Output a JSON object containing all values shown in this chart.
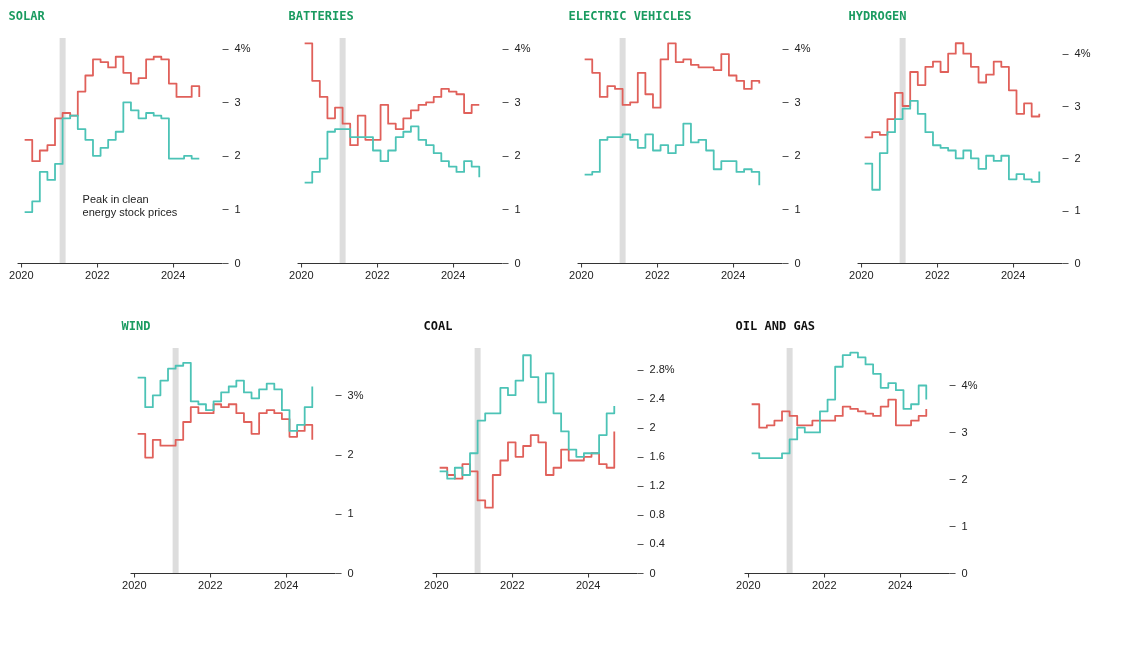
{
  "chart_data": [
    {
      "type": "step",
      "title": "SOLAR",
      "x": [
        2020.1,
        2020.3,
        2020.5,
        2020.7,
        2020.9,
        2021.1,
        2021.3,
        2021.5,
        2021.7,
        2021.9,
        2022.1,
        2022.3,
        2022.5,
        2022.7,
        2022.9,
        2023.1,
        2023.3,
        2023.5,
        2023.7,
        2023.9,
        2024.1,
        2024.3,
        2024.5,
        2024.7
      ],
      "xlim": [
        2019.9,
        2025.3
      ],
      "xticks": [
        2020,
        2022,
        2024
      ],
      "ylim": [
        0,
        4.2
      ],
      "yticks": [
        0,
        1,
        2,
        3,
        {
          "value": 4,
          "label": "4%"
        }
      ],
      "legend": false,
      "grid": false,
      "ref_lines": [
        {
          "axis": "x",
          "value": 2021.1,
          "label": "Peak in clean energy stock prices",
          "color": "#dddddd"
        }
      ],
      "series": [
        {
          "color": "#e0605a",
          "values": [
            2.3,
            1.9,
            2.1,
            2.2,
            2.7,
            2.8,
            2.75,
            3.2,
            3.5,
            3.8,
            3.75,
            3.65,
            3.85,
            3.55,
            3.35,
            3.45,
            3.8,
            3.85,
            3.8,
            3.35,
            3.1,
            3.1,
            3.3,
            3.1
          ]
        },
        {
          "color": "#4cc3b6",
          "values": [
            0.95,
            1.15,
            1.7,
            1.55,
            1.85,
            2.7,
            2.75,
            2.5,
            2.3,
            2.0,
            2.15,
            2.3,
            2.45,
            3.0,
            2.85,
            2.7,
            2.8,
            2.75,
            2.7,
            1.95,
            1.95,
            2.0,
            1.95,
            1.95
          ]
        }
      ]
    },
    {
      "type": "step",
      "title": "BATTERIES",
      "x": [
        2020.1,
        2020.3,
        2020.5,
        2020.7,
        2020.9,
        2021.1,
        2021.3,
        2021.5,
        2021.7,
        2021.9,
        2022.1,
        2022.3,
        2022.5,
        2022.7,
        2022.9,
        2023.1,
        2023.3,
        2023.5,
        2023.7,
        2023.9,
        2024.1,
        2024.3,
        2024.5,
        2024.7
      ],
      "xlim": [
        2019.9,
        2025.3
      ],
      "xticks": [
        2020,
        2022,
        2024
      ],
      "ylim": [
        0,
        4.2
      ],
      "yticks": [
        0,
        1,
        2,
        3,
        {
          "value": 4,
          "label": "4%"
        }
      ],
      "legend": false,
      "grid": false,
      "ref_lines": [
        {
          "axis": "x",
          "value": 2021.1,
          "color": "#dddddd"
        }
      ],
      "series": [
        {
          "color": "#e0605a",
          "values": [
            4.1,
            3.4,
            3.1,
            2.7,
            2.9,
            2.6,
            2.2,
            2.75,
            2.3,
            2.3,
            2.95,
            2.6,
            2.5,
            2.7,
            2.85,
            2.95,
            3.0,
            3.1,
            3.25,
            3.2,
            3.15,
            2.8,
            2.95,
            2.95
          ]
        },
        {
          "color": "#4cc3b6",
          "values": [
            1.5,
            1.7,
            1.95,
            2.45,
            2.5,
            2.5,
            2.35,
            2.35,
            2.35,
            2.1,
            1.9,
            2.1,
            2.35,
            2.45,
            2.55,
            2.3,
            2.2,
            2.05,
            1.9,
            1.8,
            1.7,
            1.9,
            1.8,
            1.6
          ]
        }
      ]
    },
    {
      "type": "step",
      "title": "ELECTRIC VEHICLES",
      "x": [
        2020.1,
        2020.3,
        2020.5,
        2020.7,
        2020.9,
        2021.1,
        2021.3,
        2021.5,
        2021.7,
        2021.9,
        2022.1,
        2022.3,
        2022.5,
        2022.7,
        2022.9,
        2023.1,
        2023.3,
        2023.5,
        2023.7,
        2023.9,
        2024.1,
        2024.3,
        2024.5,
        2024.7
      ],
      "xlim": [
        2019.9,
        2025.3
      ],
      "xticks": [
        2020,
        2022,
        2024
      ],
      "ylim": [
        0,
        4.2
      ],
      "yticks": [
        0,
        1,
        2,
        3,
        {
          "value": 4,
          "label": "4%"
        }
      ],
      "legend": false,
      "grid": false,
      "ref_lines": [
        {
          "axis": "x",
          "value": 2021.1,
          "color": "#dddddd"
        }
      ],
      "series": [
        {
          "color": "#e0605a",
          "values": [
            3.8,
            3.55,
            3.1,
            3.3,
            3.25,
            2.95,
            3.0,
            3.55,
            3.15,
            2.9,
            3.8,
            4.1,
            3.75,
            3.8,
            3.7,
            3.65,
            3.65,
            3.6,
            3.9,
            3.5,
            3.4,
            3.25,
            3.4,
            3.35
          ]
        },
        {
          "color": "#4cc3b6",
          "values": [
            1.65,
            1.7,
            2.3,
            2.35,
            2.35,
            2.4,
            2.3,
            2.15,
            2.4,
            2.1,
            2.2,
            2.05,
            2.2,
            2.6,
            2.25,
            2.3,
            2.1,
            1.75,
            1.9,
            1.9,
            1.7,
            1.75,
            1.7,
            1.45
          ]
        }
      ]
    },
    {
      "type": "step",
      "title": "HYDROGEN",
      "x": [
        2020.1,
        2020.3,
        2020.5,
        2020.7,
        2020.9,
        2021.1,
        2021.3,
        2021.5,
        2021.7,
        2021.9,
        2022.1,
        2022.3,
        2022.5,
        2022.7,
        2022.9,
        2023.1,
        2023.3,
        2023.5,
        2023.7,
        2023.9,
        2024.1,
        2024.3,
        2024.5,
        2024.7
      ],
      "xlim": [
        2019.9,
        2025.3
      ],
      "xticks": [
        2020,
        2022,
        2024
      ],
      "ylim": [
        0,
        4.3
      ],
      "yticks": [
        0,
        1,
        2,
        3,
        {
          "value": 4,
          "label": "4%"
        }
      ],
      "legend": false,
      "grid": false,
      "ref_lines": [
        {
          "axis": "x",
          "value": 2021.1,
          "color": "#dddddd"
        }
      ],
      "series": [
        {
          "color": "#e0605a",
          "values": [
            2.4,
            2.5,
            2.45,
            2.75,
            3.25,
            3.0,
            3.65,
            3.4,
            3.75,
            3.85,
            3.65,
            4.0,
            4.2,
            4.0,
            3.75,
            3.45,
            3.6,
            3.85,
            3.75,
            3.3,
            2.85,
            3.05,
            2.8,
            2.85
          ]
        },
        {
          "color": "#4cc3b6",
          "values": [
            1.9,
            1.4,
            2.1,
            2.5,
            2.75,
            2.95,
            3.1,
            2.85,
            2.5,
            2.25,
            2.2,
            2.15,
            2.0,
            2.15,
            2.0,
            1.8,
            2.05,
            1.95,
            2.05,
            1.6,
            1.7,
            1.6,
            1.55,
            1.75
          ]
        }
      ]
    },
    {
      "type": "step",
      "title": "WIND",
      "x": [
        2020.1,
        2020.3,
        2020.5,
        2020.7,
        2020.9,
        2021.1,
        2021.3,
        2021.5,
        2021.7,
        2021.9,
        2022.1,
        2022.3,
        2022.5,
        2022.7,
        2022.9,
        2023.1,
        2023.3,
        2023.5,
        2023.7,
        2023.9,
        2024.1,
        2024.3,
        2024.5,
        2024.7
      ],
      "xlim": [
        2019.9,
        2025.3
      ],
      "xticks": [
        2020,
        2022,
        2024
      ],
      "ylim": [
        0,
        3.8
      ],
      "yticks": [
        0,
        1,
        2,
        {
          "value": 3,
          "label": "3%"
        }
      ],
      "legend": false,
      "grid": false,
      "ref_lines": [
        {
          "axis": "x",
          "value": 2021.1,
          "color": "#dddddd"
        }
      ],
      "series": [
        {
          "color": "#e0605a",
          "values": [
            2.35,
            1.95,
            2.25,
            2.15,
            2.15,
            2.25,
            2.55,
            2.8,
            2.7,
            2.7,
            2.85,
            2.8,
            2.85,
            2.7,
            2.55,
            2.35,
            2.7,
            2.75,
            2.7,
            2.6,
            2.3,
            2.4,
            2.5,
            2.25
          ]
        },
        {
          "color": "#4cc3b6",
          "values": [
            3.3,
            2.8,
            3.0,
            3.25,
            3.45,
            3.5,
            3.55,
            2.9,
            2.85,
            2.75,
            2.9,
            3.05,
            3.15,
            3.25,
            3.05,
            2.95,
            3.1,
            3.2,
            3.1,
            2.75,
            2.4,
            2.5,
            2.8,
            3.15
          ]
        }
      ]
    },
    {
      "type": "step",
      "title": "COAL",
      "x": [
        2020.1,
        2020.3,
        2020.5,
        2020.7,
        2020.9,
        2021.1,
        2021.3,
        2021.5,
        2021.7,
        2021.9,
        2022.1,
        2022.3,
        2022.5,
        2022.7,
        2022.9,
        2023.1,
        2023.3,
        2023.5,
        2023.7,
        2023.9,
        2024.1,
        2024.3,
        2024.5,
        2024.7
      ],
      "xlim": [
        2019.9,
        2025.3
      ],
      "xticks": [
        2020,
        2022,
        2024
      ],
      "ylim": [
        0,
        3.1
      ],
      "yticks": [
        0,
        0.4,
        0.8,
        1.2,
        1.6,
        2,
        2.4,
        {
          "value": 2.8,
          "label": "2.8%"
        }
      ],
      "legend": false,
      "grid": false,
      "ref_lines": [
        {
          "axis": "x",
          "value": 2021.1,
          "color": "#dddddd"
        }
      ],
      "series": [
        {
          "color": "#e0605a",
          "values": [
            1.45,
            1.35,
            1.3,
            1.5,
            1.4,
            1.0,
            0.9,
            1.35,
            1.55,
            1.8,
            1.6,
            1.75,
            1.9,
            1.8,
            1.35,
            1.45,
            1.7,
            1.55,
            1.55,
            1.6,
            1.65,
            1.5,
            1.45,
            1.95
          ]
        },
        {
          "color": "#4cc3b6",
          "values": [
            1.4,
            1.3,
            1.45,
            1.35,
            1.65,
            2.1,
            2.2,
            2.2,
            2.55,
            2.45,
            2.65,
            3.0,
            2.7,
            2.35,
            2.75,
            2.2,
            1.95,
            1.7,
            1.6,
            1.65,
            1.65,
            1.9,
            2.2,
            2.3
          ]
        }
      ]
    },
    {
      "type": "step",
      "title": "OIL AND GAS",
      "x": [
        2020.1,
        2020.3,
        2020.5,
        2020.7,
        2020.9,
        2021.1,
        2021.3,
        2021.5,
        2021.7,
        2021.9,
        2022.1,
        2022.3,
        2022.5,
        2022.7,
        2022.9,
        2023.1,
        2023.3,
        2023.5,
        2023.7,
        2023.9,
        2024.1,
        2024.3,
        2024.5,
        2024.7
      ],
      "xlim": [
        2019.9,
        2025.3
      ],
      "xticks": [
        2020,
        2022,
        2024
      ],
      "ylim": [
        0,
        4.8
      ],
      "yticks": [
        0,
        1,
        2,
        3,
        {
          "value": 4,
          "label": "4%"
        }
      ],
      "legend": false,
      "grid": false,
      "ref_lines": [
        {
          "axis": "x",
          "value": 2021.1,
          "color": "#dddddd"
        }
      ],
      "series": [
        {
          "color": "#e0605a",
          "values": [
            3.6,
            3.1,
            3.15,
            3.25,
            3.45,
            3.35,
            3.15,
            3.15,
            3.25,
            3.25,
            3.25,
            3.35,
            3.55,
            3.5,
            3.45,
            3.4,
            3.35,
            3.55,
            3.7,
            3.15,
            3.15,
            3.25,
            3.35,
            3.5
          ]
        },
        {
          "color": "#4cc3b6",
          "values": [
            2.55,
            2.45,
            2.45,
            2.45,
            2.55,
            2.85,
            3.1,
            3.0,
            3.0,
            3.45,
            3.7,
            4.4,
            4.65,
            4.7,
            4.6,
            4.45,
            4.25,
            3.95,
            4.05,
            3.9,
            3.5,
            3.6,
            4.0,
            3.7
          ]
        }
      ]
    }
  ]
}
